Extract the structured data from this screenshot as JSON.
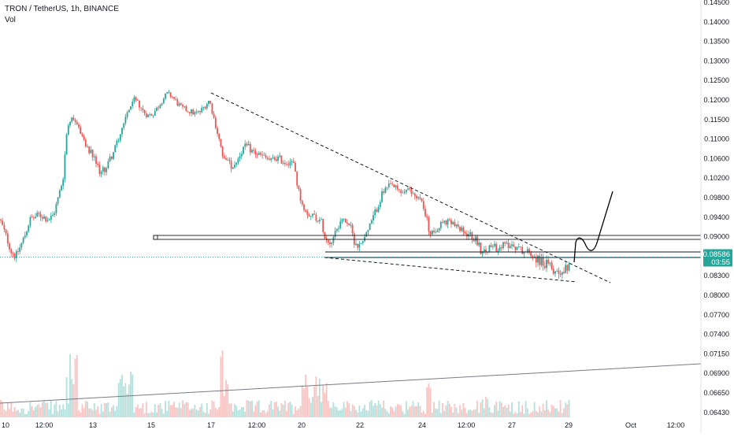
{
  "chart_data": {
    "type": "candlestick",
    "symbol_line": "TRON / TetherUS, 1h, BINANCE",
    "volume_label": "Vol",
    "y_ticks": [
      "0.14500",
      "0.14000",
      "0.13500",
      "0.13000",
      "0.12500",
      "0.12000",
      "0.11500",
      "0.11000",
      "0.10600",
      "0.10200",
      "0.09800",
      "0.09400",
      "0.09000",
      "0.08600",
      "0.08300",
      "0.08000",
      "0.07700",
      "0.07400",
      "0.07150",
      "0.06900",
      "0.06650",
      "0.06430"
    ],
    "x_ticks": [
      "10",
      "12:00",
      "13",
      "15",
      "17",
      "12:00",
      "20",
      "22",
      "24",
      "12:00",
      "27",
      "29",
      "Oct",
      "12:00"
    ],
    "last_price": "0.08586",
    "countdown": "03:55",
    "colors": {
      "up": "#26a69a",
      "down": "#ef5350",
      "badge": "#26a69a",
      "annotation": "#000000",
      "hline": "#131722"
    },
    "price_path": [
      [
        0,
        0.0935
      ],
      [
        8,
        0.09
      ],
      [
        14,
        0.087
      ],
      [
        20,
        0.086
      ],
      [
        26,
        0.088
      ],
      [
        32,
        0.0905
      ],
      [
        38,
        0.0935
      ],
      [
        44,
        0.094
      ],
      [
        50,
        0.0945
      ],
      [
        56,
        0.094
      ],
      [
        62,
        0.0935
      ],
      [
        68,
        0.0945
      ],
      [
        74,
        0.098
      ],
      [
        80,
        0.102
      ],
      [
        86,
        0.114
      ],
      [
        92,
        0.116
      ],
      [
        98,
        0.114
      ],
      [
        104,
        0.111
      ],
      [
        110,
        0.108
      ],
      [
        116,
        0.107
      ],
      [
        122,
        0.105
      ],
      [
        128,
        0.103
      ],
      [
        134,
        0.104
      ],
      [
        140,
        0.106
      ],
      [
        146,
        0.108
      ],
      [
        152,
        0.111
      ],
      [
        158,
        0.115
      ],
      [
        164,
        0.118
      ],
      [
        170,
        0.12
      ],
      [
        176,
        0.119
      ],
      [
        182,
        0.117
      ],
      [
        188,
        0.116
      ],
      [
        194,
        0.1165
      ],
      [
        200,
        0.118
      ],
      [
        206,
        0.12
      ],
      [
        212,
        0.1215
      ],
      [
        218,
        0.121
      ],
      [
        224,
        0.1195
      ],
      [
        230,
        0.118
      ],
      [
        236,
        0.1175
      ],
      [
        242,
        0.117
      ],
      [
        248,
        0.1165
      ],
      [
        254,
        0.117
      ],
      [
        260,
        0.1185
      ],
      [
        266,
        0.12
      ],
      [
        272,
        0.115
      ],
      [
        278,
        0.11
      ],
      [
        284,
        0.106
      ],
      [
        290,
        0.105
      ],
      [
        296,
        0.1045
      ],
      [
        302,
        0.106
      ],
      [
        308,
        0.108
      ],
      [
        314,
        0.1085
      ],
      [
        320,
        0.1075
      ],
      [
        326,
        0.107
      ],
      [
        332,
        0.1065
      ],
      [
        338,
        0.106
      ],
      [
        344,
        0.1055
      ],
      [
        350,
        0.1062
      ],
      [
        356,
        0.1058
      ],
      [
        362,
        0.1052
      ],
      [
        368,
        0.1055
      ],
      [
        374,
        0.1045
      ],
      [
        378,
        0.1
      ],
      [
        384,
        0.0965
      ],
      [
        390,
        0.095
      ],
      [
        396,
        0.0945
      ],
      [
        402,
        0.094
      ],
      [
        408,
        0.093
      ],
      [
        414,
        0.0895
      ],
      [
        420,
        0.089
      ],
      [
        426,
        0.0915
      ],
      [
        432,
        0.093
      ],
      [
        438,
        0.0935
      ],
      [
        444,
        0.0925
      ],
      [
        450,
        0.089
      ],
      [
        456,
        0.088
      ],
      [
        462,
        0.09
      ],
      [
        468,
        0.0915
      ],
      [
        474,
        0.094
      ],
      [
        480,
        0.0965
      ],
      [
        486,
        0.099
      ],
      [
        492,
        0.1
      ],
      [
        498,
        0.1005
      ],
      [
        504,
        0.0995
      ],
      [
        510,
        0.099
      ],
      [
        516,
        0.0995
      ],
      [
        522,
        0.099
      ],
      [
        528,
        0.0985
      ],
      [
        534,
        0.0975
      ],
      [
        540,
        0.095
      ],
      [
        546,
        0.0905
      ],
      [
        552,
        0.0915
      ],
      [
        558,
        0.0925
      ],
      [
        564,
        0.093
      ],
      [
        570,
        0.0928
      ],
      [
        576,
        0.0925
      ],
      [
        582,
        0.0915
      ],
      [
        588,
        0.091
      ],
      [
        594,
        0.0905
      ],
      [
        600,
        0.09
      ],
      [
        606,
        0.089
      ],
      [
        612,
        0.0865
      ],
      [
        618,
        0.087
      ],
      [
        624,
        0.088
      ],
      [
        630,
        0.0878
      ],
      [
        636,
        0.088
      ],
      [
        642,
        0.0883
      ],
      [
        648,
        0.0885
      ],
      [
        654,
        0.088
      ],
      [
        660,
        0.0875
      ],
      [
        666,
        0.087
      ],
      [
        672,
        0.0868
      ],
      [
        678,
        0.086
      ],
      [
        684,
        0.0855
      ],
      [
        690,
        0.085
      ],
      [
        696,
        0.0845
      ],
      [
        702,
        0.084
      ],
      [
        708,
        0.0836
      ],
      [
        714,
        0.0838
      ],
      [
        718,
        0.084
      ],
      [
        722,
        0.0848
      ],
      [
        724,
        0.0855
      ]
    ]
  }
}
